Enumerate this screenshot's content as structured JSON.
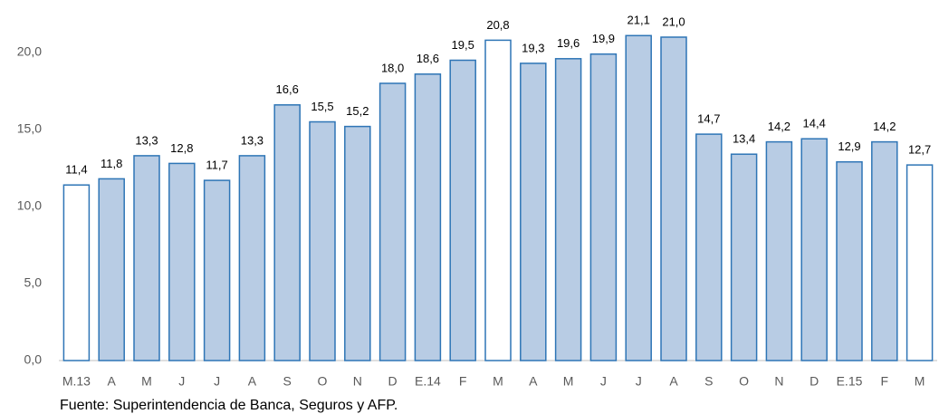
{
  "chart_data": {
    "type": "bar",
    "categories": [
      "M.13",
      "A",
      "M",
      "J",
      "J",
      "A",
      "S",
      "O",
      "N",
      "D",
      "E.14",
      "F",
      "M",
      "A",
      "M",
      "J",
      "J",
      "A",
      "S",
      "O",
      "N",
      "D",
      "E.15",
      "F",
      "M"
    ],
    "values": [
      11.4,
      11.8,
      13.3,
      12.8,
      11.7,
      13.3,
      16.6,
      15.5,
      15.2,
      18.0,
      18.6,
      19.5,
      20.8,
      19.3,
      19.6,
      19.9,
      21.1,
      21.0,
      14.7,
      13.4,
      14.2,
      14.4,
      12.9,
      14.2,
      12.7
    ],
    "value_labels": [
      "11,4",
      "11,8",
      "13,3",
      "12,8",
      "11,7",
      "13,3",
      "16,6",
      "15,5",
      "15,2",
      "18,0",
      "18,6",
      "19,5",
      "20,8",
      "19,3",
      "19,6",
      "19,9",
      "21,1",
      "21,0",
      "14,7",
      "13,4",
      "14,2",
      "14,4",
      "12,9",
      "14,2",
      "12,7"
    ],
    "colors": [
      "#ffffff",
      "#b8cce4",
      "#b8cce4",
      "#b8cce4",
      "#b8cce4",
      "#b8cce4",
      "#b8cce4",
      "#b8cce4",
      "#b8cce4",
      "#b8cce4",
      "#b8cce4",
      "#b8cce4",
      "#ffffff",
      "#b8cce4",
      "#b8cce4",
      "#b8cce4",
      "#b8cce4",
      "#b8cce4",
      "#b8cce4",
      "#b8cce4",
      "#b8cce4",
      "#b8cce4",
      "#b8cce4",
      "#b8cce4",
      "#ffffff"
    ],
    "border_color": "#2e75b6",
    "ylim": [
      0,
      22.5
    ],
    "yticks": [
      {
        "value": 0,
        "label": "0,0"
      },
      {
        "value": 5,
        "label": "5,0"
      },
      {
        "value": 10,
        "label": "10,0"
      },
      {
        "value": 15,
        "label": "15,0"
      },
      {
        "value": 20,
        "label": "20,0"
      }
    ],
    "grid": false,
    "source": "Fuente: Superintendencia de Banca, Seguros y AFP."
  }
}
